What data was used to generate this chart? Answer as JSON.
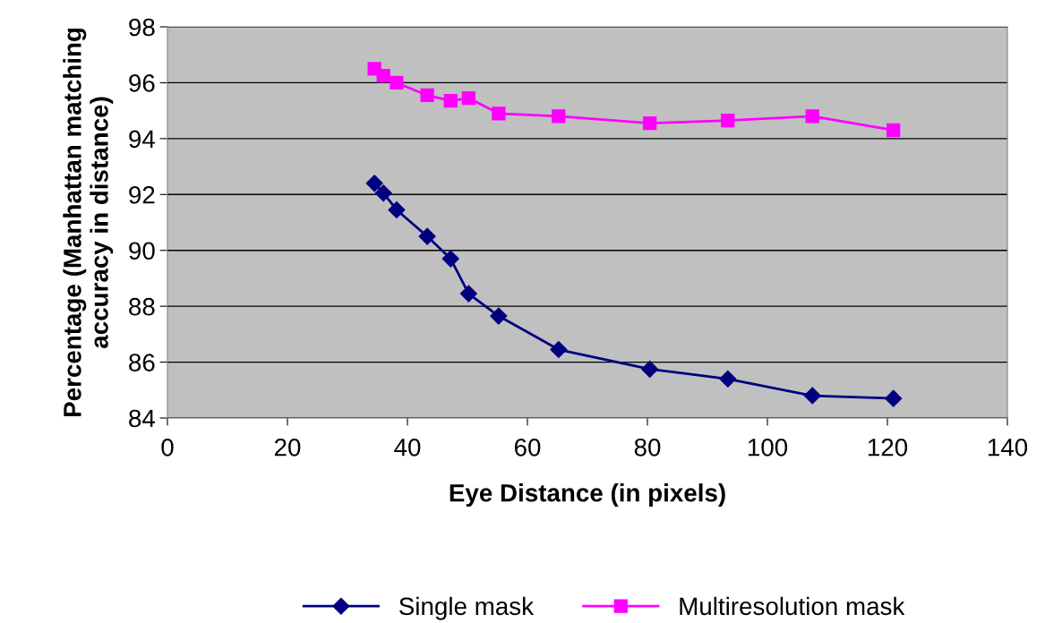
{
  "chart_data": {
    "type": "line",
    "xlabel": "Eye Distance (in pixels)",
    "ylabel": "Percentage (Manhattan matching\naccuracy in distance)",
    "x": [
      34.5,
      36,
      38.2,
      43.3,
      47.2,
      50.2,
      55.2,
      65.2,
      80.4,
      93.4,
      107.5,
      121
    ],
    "series": [
      {
        "name": "Single mask",
        "color": "#000080",
        "marker": "diamond",
        "values": [
          92.4,
          92.05,
          91.45,
          90.5,
          89.7,
          88.45,
          87.65,
          86.45,
          85.75,
          85.4,
          84.8,
          84.7
        ]
      },
      {
        "name": "Multiresolution mask",
        "color": "#ff00ff",
        "marker": "square",
        "values": [
          96.5,
          96.25,
          96.0,
          95.55,
          95.35,
          95.45,
          94.9,
          94.8,
          94.55,
          94.65,
          94.8,
          94.3
        ]
      }
    ],
    "xlim": [
      0,
      140
    ],
    "xticks": [
      0,
      20,
      40,
      60,
      80,
      100,
      120,
      140
    ],
    "ylim": [
      84,
      98
    ],
    "yticks": [
      84,
      86,
      88,
      90,
      92,
      94,
      96,
      98
    ],
    "grid": "y",
    "legend": "bottom",
    "line_style": "solid"
  }
}
